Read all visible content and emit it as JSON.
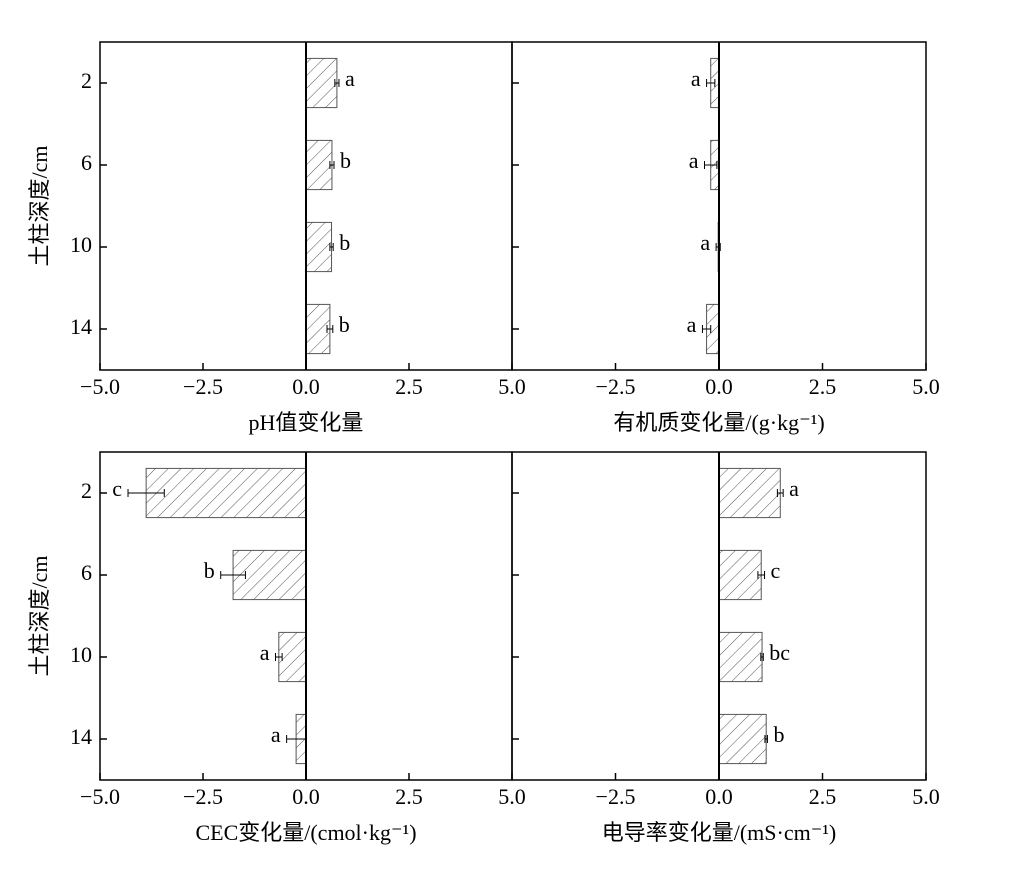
{
  "chart_data": [
    {
      "type": "bar",
      "orientation": "horizontal",
      "xlabel": "pH值变化量",
      "ylabel": "土柱深度/cm",
      "categories": [
        "2",
        "6",
        "10",
        "14"
      ],
      "values": [
        0.75,
        0.63,
        0.62,
        0.58
      ],
      "errors": [
        0.05,
        0.05,
        0.04,
        0.07
      ],
      "significance": [
        "a",
        "b",
        "b",
        "b"
      ],
      "color": "#555555",
      "xlim": [
        -5,
        5
      ],
      "xticks": [
        {
          "value": -5,
          "label": "−5.0"
        },
        {
          "value": -2.5,
          "label": "−2.5"
        },
        {
          "value": 0,
          "label": "0.0"
        },
        {
          "value": 2.5,
          "label": "2.5"
        },
        {
          "value": 5,
          "label": "5.0"
        }
      ]
    },
    {
      "type": "bar",
      "orientation": "horizontal",
      "xlabel": "有机质变化量/(g·kg⁻¹)",
      "categories": [
        "2",
        "6",
        "10",
        "14"
      ],
      "values": [
        -0.2,
        -0.2,
        -0.02,
        -0.3
      ],
      "errors": [
        0.1,
        0.15,
        0.05,
        0.1
      ],
      "significance": [
        "a",
        "a",
        "a",
        "a"
      ],
      "color": "#555555",
      "xlim": [
        -5,
        5
      ],
      "xticks": [
        {
          "value": -2.5,
          "label": "−2.5"
        },
        {
          "value": 0,
          "label": "0.0"
        },
        {
          "value": 2.5,
          "label": "2.5"
        },
        {
          "value": 5,
          "label": "5.0"
        }
      ]
    },
    {
      "type": "bar",
      "orientation": "horizontal",
      "xlabel": "CEC变化量/(cmol·kg⁻¹)",
      "ylabel": "土柱深度/cm",
      "categories": [
        "2",
        "6",
        "10",
        "14"
      ],
      "values": [
        -3.88,
        -1.77,
        -0.66,
        -0.24
      ],
      "errors": [
        0.44,
        0.3,
        0.08,
        0.23
      ],
      "significance": [
        "c",
        "b",
        "a",
        "a"
      ],
      "color": "#555555",
      "xlim": [
        -5,
        5
      ],
      "xticks": [
        {
          "value": -5,
          "label": "−5.0"
        },
        {
          "value": -2.5,
          "label": "−2.5"
        },
        {
          "value": 0,
          "label": "0.0"
        },
        {
          "value": 2.5,
          "label": "2.5"
        },
        {
          "value": 5,
          "label": "5.0"
        }
      ]
    },
    {
      "type": "bar",
      "orientation": "horizontal",
      "xlabel": "电导率变化量/(mS·cm⁻¹)",
      "categories": [
        "2",
        "6",
        "10",
        "14"
      ],
      "values": [
        1.48,
        1.02,
        1.04,
        1.14
      ],
      "errors": [
        0.07,
        0.08,
        0.03,
        0.03
      ],
      "significance": [
        "a",
        "c",
        "bc",
        "b"
      ],
      "color": "#555555",
      "xlim": [
        -5,
        5
      ],
      "xticks": [
        {
          "value": -2.5,
          "label": "−2.5"
        },
        {
          "value": 0,
          "label": "0.0"
        },
        {
          "value": 2.5,
          "label": "2.5"
        },
        {
          "value": 5,
          "label": "5.0"
        }
      ]
    }
  ]
}
